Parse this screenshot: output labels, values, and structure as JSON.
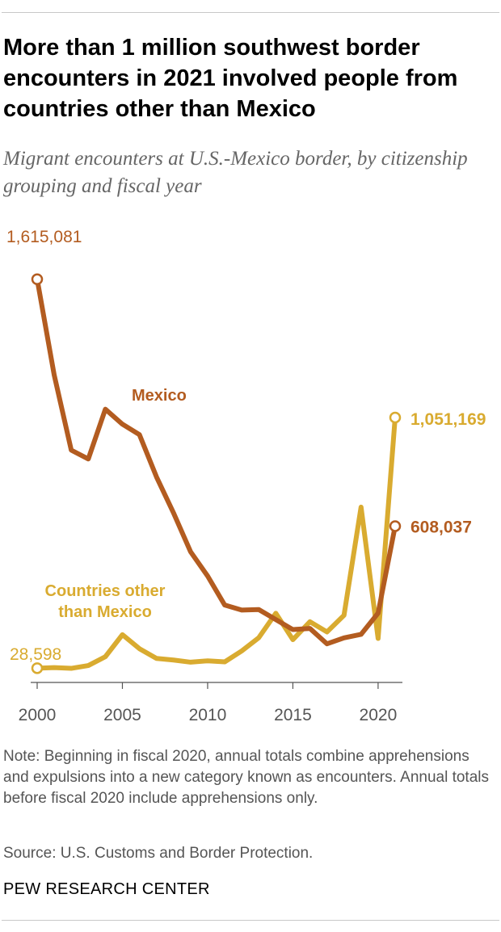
{
  "title": "More than 1 million southwest border encounters in 2021 involved people from countries other than Mexico",
  "subtitle": "Migrant encounters at U.S.-Mexico border, by citizenship grouping and fiscal year",
  "note": "Note: Beginning in fiscal 2020, annual totals combine apprehensions and expulsions into a new category known as encounters. Annual totals before fiscal 2020 include apprehensions only.",
  "source": "Source: U.S. Customs and Border Protection.",
  "brand": "PEW RESEARCH CENTER",
  "colors": {
    "mexico": "#b35c20",
    "other": "#d9ab30",
    "axis": "#555555",
    "tick_text": "#555555"
  },
  "chart_data": {
    "type": "line",
    "x": [
      2000,
      2001,
      2002,
      2003,
      2004,
      2005,
      2006,
      2007,
      2008,
      2009,
      2010,
      2011,
      2012,
      2013,
      2014,
      2015,
      2016,
      2017,
      2018,
      2019,
      2020,
      2021
    ],
    "xticks": [
      "2000",
      "2005",
      "2010",
      "2015",
      "2020"
    ],
    "xlim": [
      2000,
      2021
    ],
    "ylim": [
      0,
      1700000
    ],
    "grid": false,
    "legend": "none",
    "series": [
      {
        "key": "mexico",
        "name": "Mexico",
        "values": [
          1615081,
          1224046,
          917993,
          882012,
          1085006,
          1023905,
          981066,
          808688,
          661766,
          503386,
          404365,
          286154,
          265755,
          267734,
          226771,
          186017,
          190760,
          127938,
          152257,
          166458,
          253118,
          608037
        ],
        "start_label": "1,615,081",
        "end_label": "608,037"
      },
      {
        "key": "other",
        "name": "Countries other than Mexico",
        "values": [
          28598,
          31074,
          27814,
          39215,
          75389,
          165178,
          108026,
          68314,
          61698,
          52961,
          58561,
          54212,
          98913,
          152891,
          252600,
          144914,
          218124,
          176310,
          244300,
          685500,
          149800,
          1051169
        ],
        "start_label": "28,598",
        "end_label": "1,051,169"
      }
    ]
  }
}
